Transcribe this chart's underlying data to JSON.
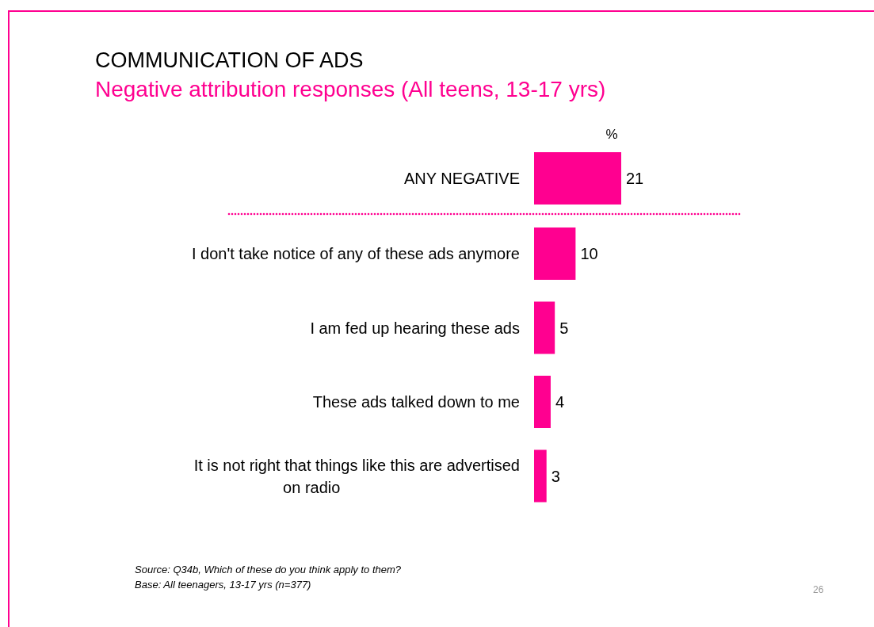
{
  "chart_data": {
    "type": "bar",
    "orientation": "horizontal",
    "title": "COMMUNICATION OF ADS",
    "subtitle": "Negative attribution responses (All teens, 13-17 yrs)",
    "xlabel": "%",
    "categories": [
      "ANY NEGATIVE",
      "I don't take notice of any of these ads anymore",
      "I am fed up hearing these ads",
      "These ads talked down to me",
      "It is not right that things like this are advertised on radio"
    ],
    "values": [
      21,
      10,
      5,
      4,
      3
    ],
    "color": "#ff0090",
    "data_labels": true,
    "annotations": [
      "Source:  Q34b, Which of these do you think apply to them?",
      "Base:  All teenagers, 13-17 yrs (n=377)",
      "26"
    ]
  }
}
